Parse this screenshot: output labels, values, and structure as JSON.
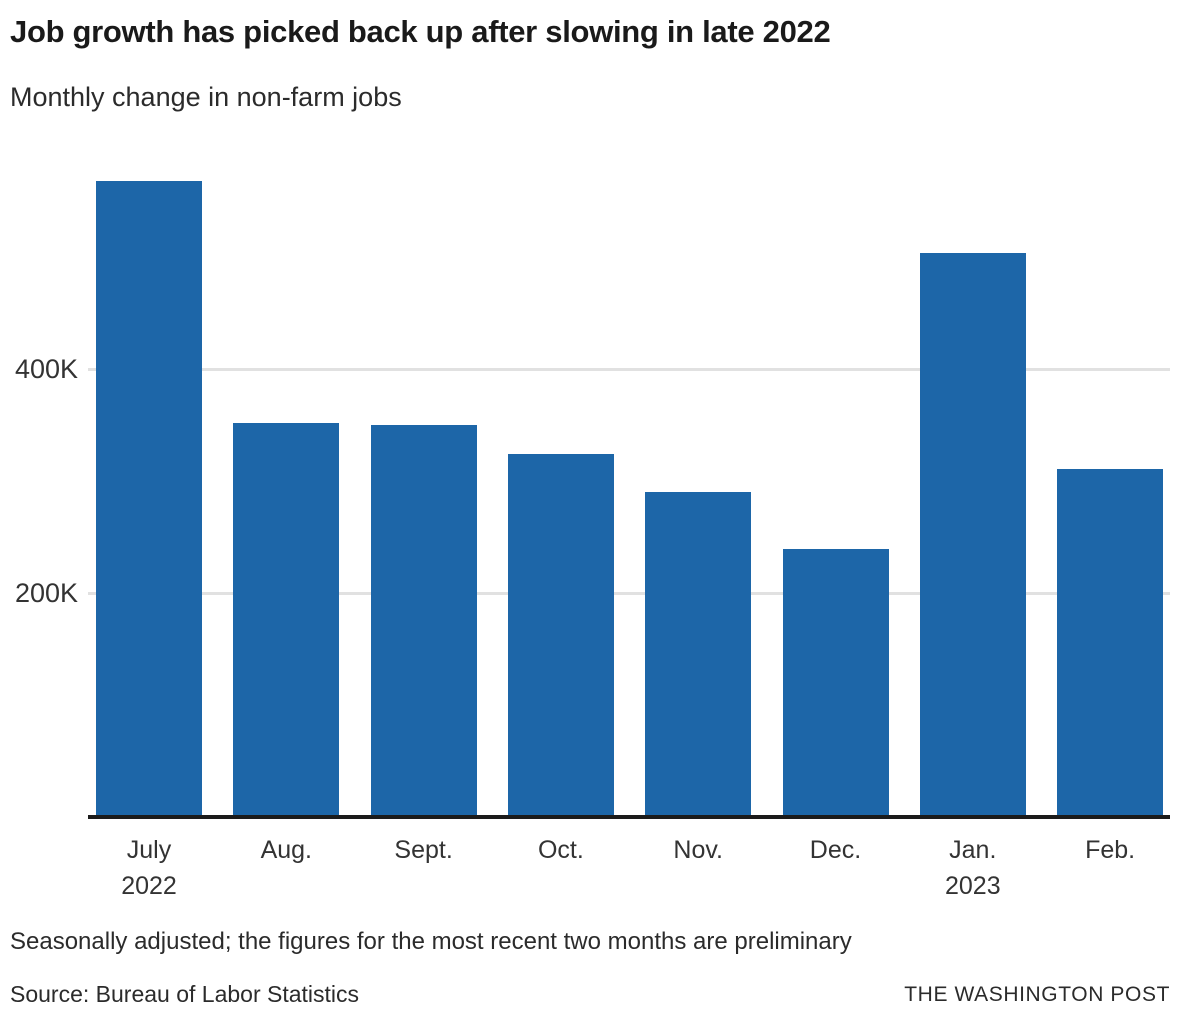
{
  "chart_data": {
    "type": "bar",
    "title": "Job growth has picked back up after slowing in late 2022",
    "subtitle": "Monthly change in non-farm jobs",
    "categories": [
      "July",
      "Aug.",
      "Sept.",
      "Oct.",
      "Nov.",
      "Dec.",
      "Jan.",
      "Feb."
    ],
    "year_labels": [
      {
        "index": 0,
        "label": "2022"
      },
      {
        "index": 6,
        "label": "2023"
      }
    ],
    "values_unit": "thousands of jobs",
    "values": [
      568,
      352,
      350,
      324,
      290,
      239,
      504,
      311
    ],
    "yticks": [
      200,
      400
    ],
    "ytick_labels": [
      "200K",
      "400K"
    ],
    "ylim": [
      0,
      600
    ],
    "xlabel": "",
    "ylabel": "",
    "grid": "horizontal",
    "legend": "none",
    "bar_color": "#1d66a8",
    "gridline_color": "#e1e1e1",
    "axis_color": "#1b1b1b",
    "tick_label_color": "#333333"
  },
  "footer": {
    "note": "Seasonally adjusted; the figures for the most recent two months are preliminary",
    "source": "Source: Bureau of Labor Statistics",
    "credit": "THE WASHINGTON POST"
  }
}
